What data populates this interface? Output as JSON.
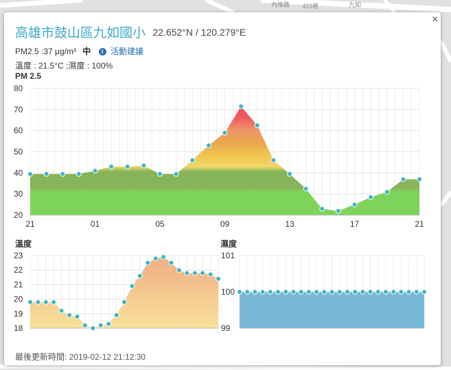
{
  "map": {
    "labels": [
      "內惟路",
      "九如",
      "459巷"
    ]
  },
  "popup": {
    "station_name": "高雄市鼓山區九如國小",
    "coordinates": "22.652°N / 120.279°E",
    "pm25_text": "PM2.5 :37 μg/m³",
    "level_text": "中",
    "advice_link": "活動建議",
    "temp_humidity_text": "溫度 : 21.5°C ;濕度 : 100%",
    "last_updated": "最後更新時間: 2019-02-12 21:12:30",
    "close_symbol": "×"
  },
  "colors": {
    "accent": "#3fa9c9",
    "link": "#2a6fb7",
    "pm_green": "#7ed35a",
    "temp_fill": "#f5cd8e",
    "humidity_fill": "#79b9d8",
    "marker": "#3fb6c4"
  },
  "chart_data": [
    {
      "type": "area",
      "title": "PM 2.5",
      "x_tick_labels": [
        "21",
        "01",
        "05",
        "09",
        "13",
        "17",
        "21"
      ],
      "ylim": [
        20,
        80
      ],
      "y_ticks": [
        20,
        30,
        40,
        50,
        60,
        70,
        80
      ],
      "grid": true,
      "values": [
        39.5,
        39.5,
        39.5,
        39.5,
        41,
        43,
        43,
        43.5,
        39.5,
        39.5,
        46,
        53,
        59,
        71.5,
        62.5,
        46,
        39.5,
        32.5,
        23,
        22,
        25,
        28.5,
        31,
        37,
        37
      ]
    },
    {
      "type": "area",
      "title": "溫度",
      "ylim": [
        18,
        23
      ],
      "y_ticks": [
        18,
        19,
        20,
        21,
        22,
        23
      ],
      "grid": true,
      "values": [
        19.8,
        19.8,
        19.8,
        19.8,
        19.2,
        18.9,
        18.8,
        18.2,
        18.0,
        18.2,
        18.3,
        18.9,
        19.8,
        20.9,
        21.6,
        22.5,
        22.8,
        22.9,
        22.5,
        22.0,
        21.8,
        21.8,
        21.8,
        21.7,
        21.4
      ]
    },
    {
      "type": "area",
      "title": "濕度",
      "ylim": [
        99,
        101
      ],
      "y_ticks": [
        99,
        100,
        101
      ],
      "grid": true,
      "values": [
        100,
        100,
        100,
        100,
        100,
        100,
        100,
        100,
        100,
        100,
        100,
        100,
        100,
        100,
        100,
        100,
        100,
        100,
        100,
        100,
        100,
        100,
        100,
        100,
        100
      ]
    }
  ]
}
